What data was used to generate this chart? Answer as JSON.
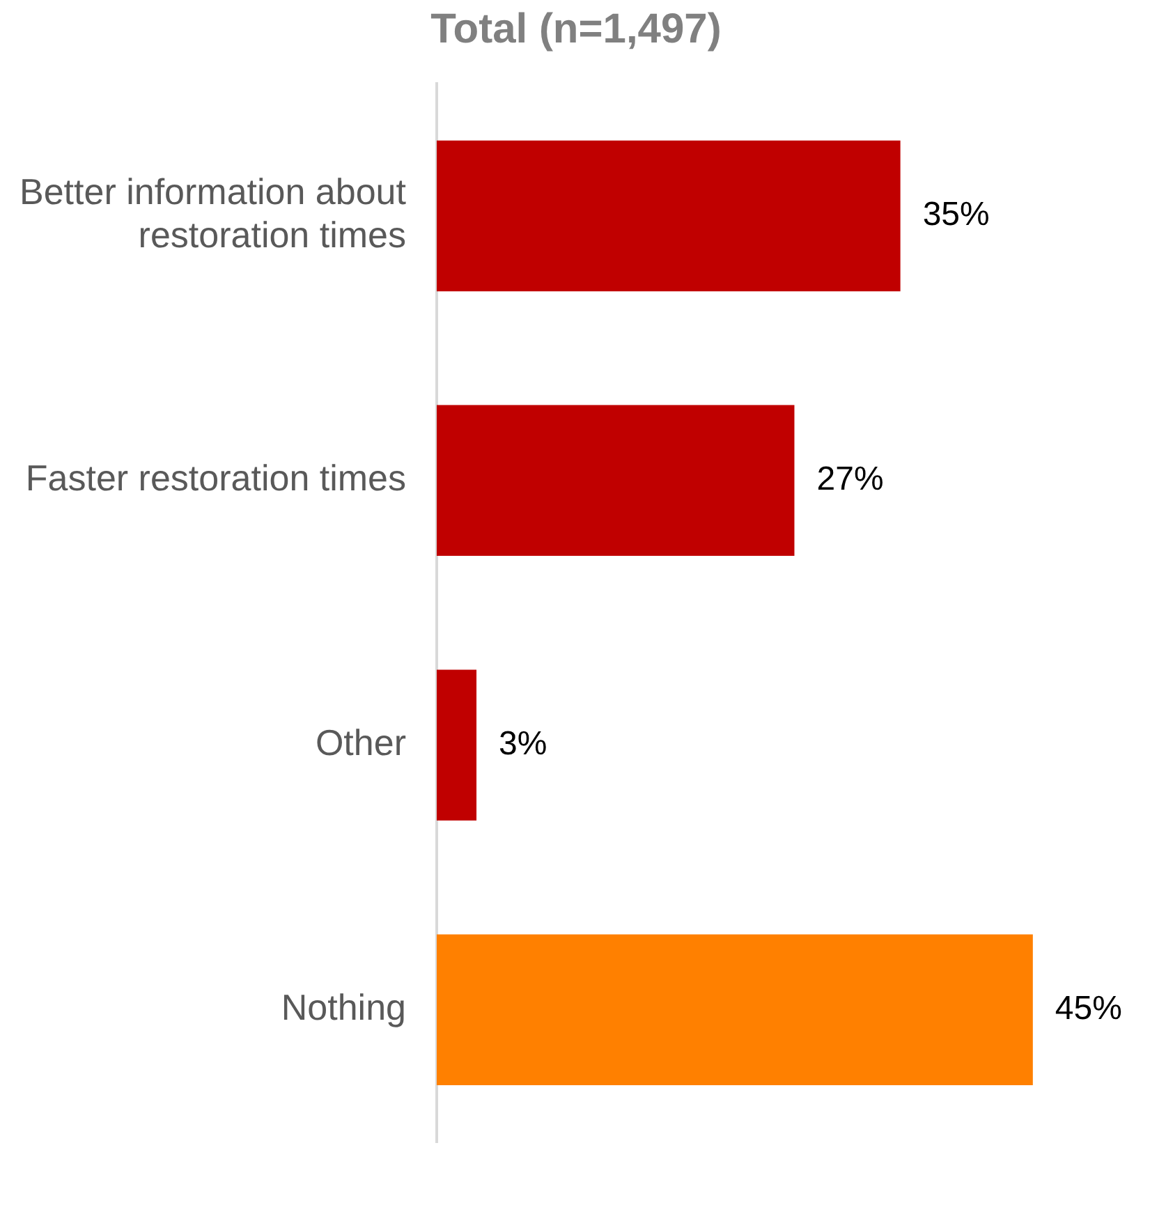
{
  "chart_data": {
    "type": "bar",
    "orientation": "horizontal",
    "title": "Total (n=1,497)",
    "categories": [
      "Better information about restoration times",
      "Faster restoration times",
      "Other",
      "Nothing"
    ],
    "values": [
      35,
      27,
      3,
      45
    ],
    "colors": [
      "#c00000",
      "#c00000",
      "#c00000",
      "#ff8000"
    ],
    "value_labels": [
      "35%",
      "27%",
      "3%",
      "45%"
    ],
    "grid": false,
    "legend": false,
    "tick_labels": "y"
  }
}
